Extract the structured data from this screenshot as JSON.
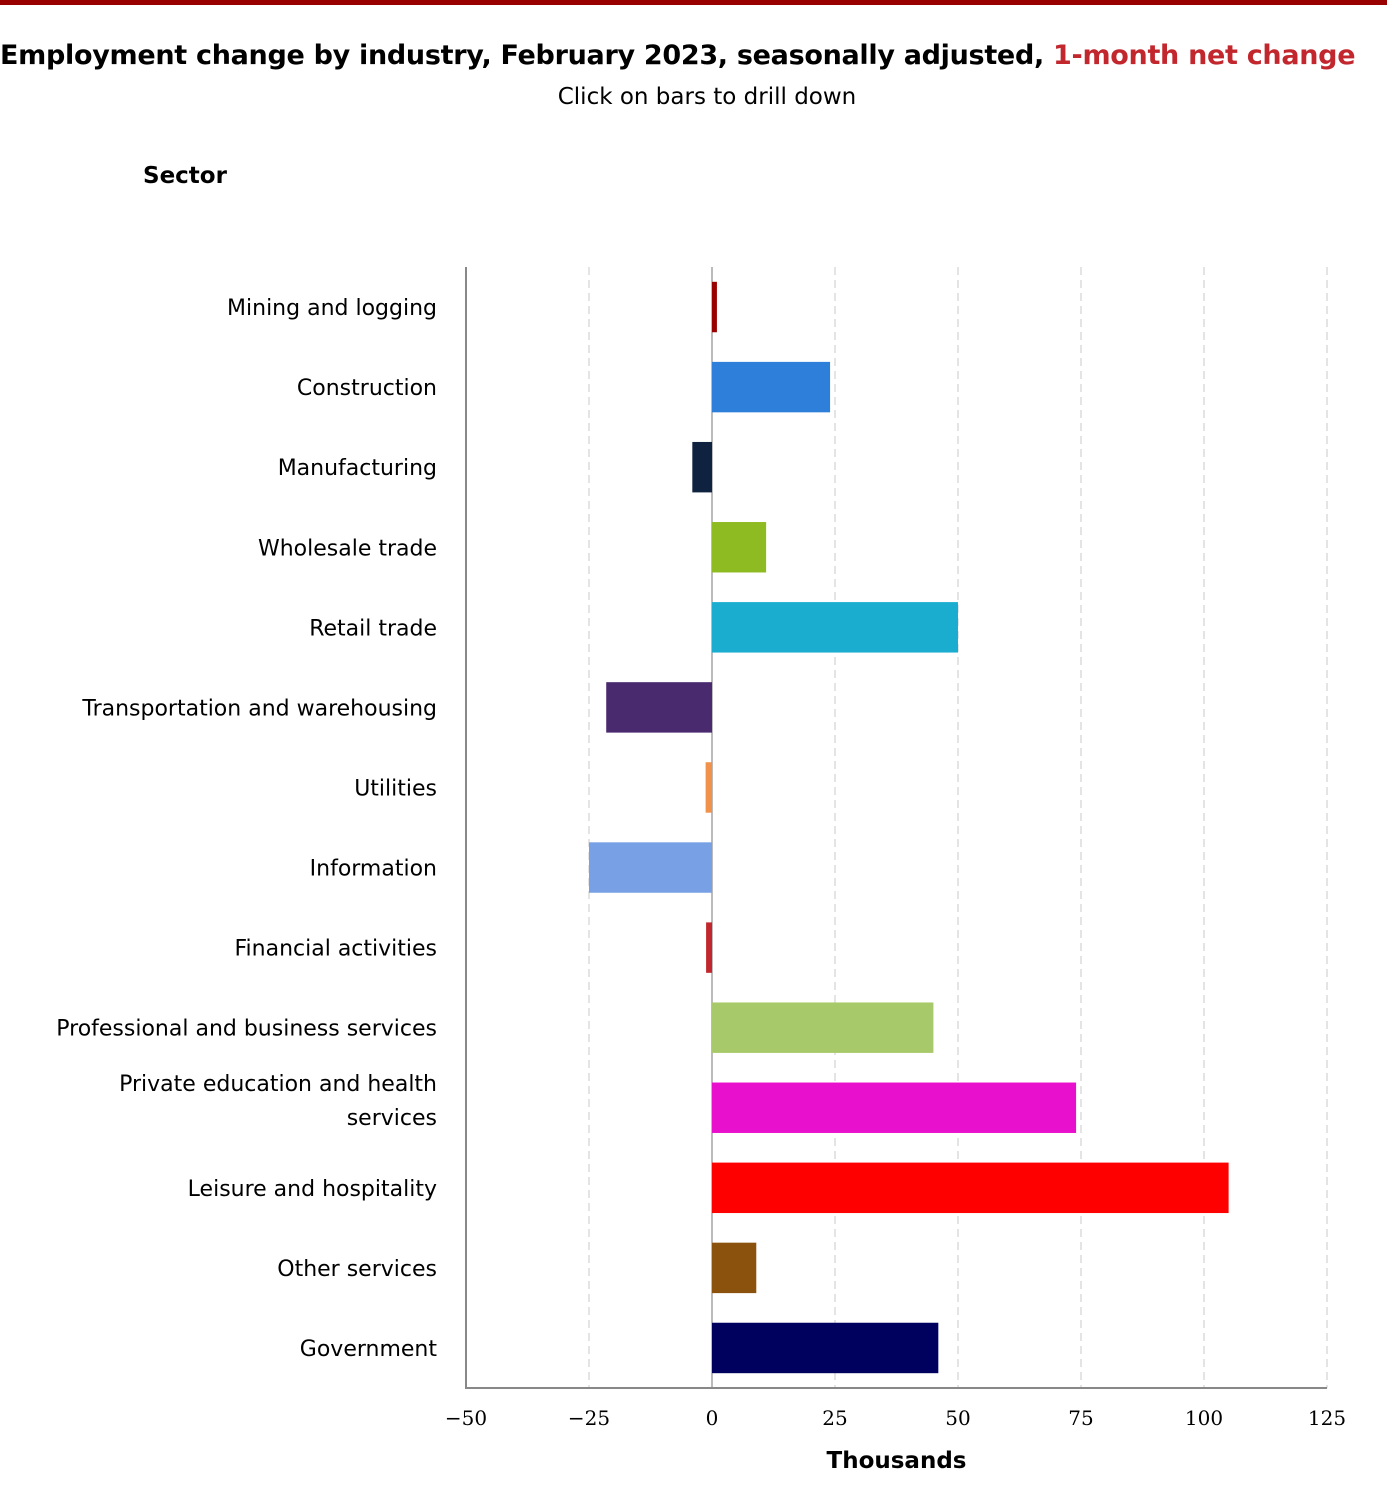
{
  "header": {
    "title_main": "Employment change by industry, February 2023, seasonally adjusted, ",
    "title_accent": "1-month net change",
    "subtitle": "Click on bars to drill down",
    "sector_label": "Sector"
  },
  "colors": {
    "top_bar": "#990000",
    "title_accent": "#c1272d"
  },
  "chart_data": {
    "type": "bar",
    "orientation": "horizontal",
    "title": "Employment change by industry, February 2023, seasonally adjusted, 1-month net change",
    "subtitle": "Click on bars to drill down",
    "xlabel": "Thousands",
    "ylabel": "Sector",
    "xlim": [
      -50,
      125
    ],
    "xticks": [
      -50,
      -25,
      0,
      25,
      50,
      75,
      100,
      125
    ],
    "xtick_labels": [
      "−50",
      "−25",
      "0",
      "25",
      "50",
      "75",
      "100",
      "125"
    ],
    "grid": true,
    "legend": "none",
    "categories": [
      [
        "Mining and logging"
      ],
      [
        "Construction"
      ],
      [
        "Manufacturing"
      ],
      [
        "Wholesale trade"
      ],
      [
        "Retail trade"
      ],
      [
        "Transportation and warehousing"
      ],
      [
        "Utilities"
      ],
      [
        "Information"
      ],
      [
        "Financial activities"
      ],
      [
        "Professional and business services"
      ],
      [
        "Private education and health",
        "services"
      ],
      [
        "Leisure and hospitality"
      ],
      [
        "Other services"
      ],
      [
        "Government"
      ]
    ],
    "values": [
      1,
      24,
      -4,
      11,
      50,
      -21.5,
      -1.3,
      -25,
      -1.2,
      45,
      74,
      105,
      9,
      46
    ],
    "bar_colors": [
      "#990000",
      "#2e7fd9",
      "#0f2340",
      "#8fbb22",
      "#1badcf",
      "#4a2a6e",
      "#f0924a",
      "#77a1e4",
      "#c1272d",
      "#a7c96a",
      "#e810cc",
      "#ff0000",
      "#8b520d",
      "#00005f"
    ]
  }
}
